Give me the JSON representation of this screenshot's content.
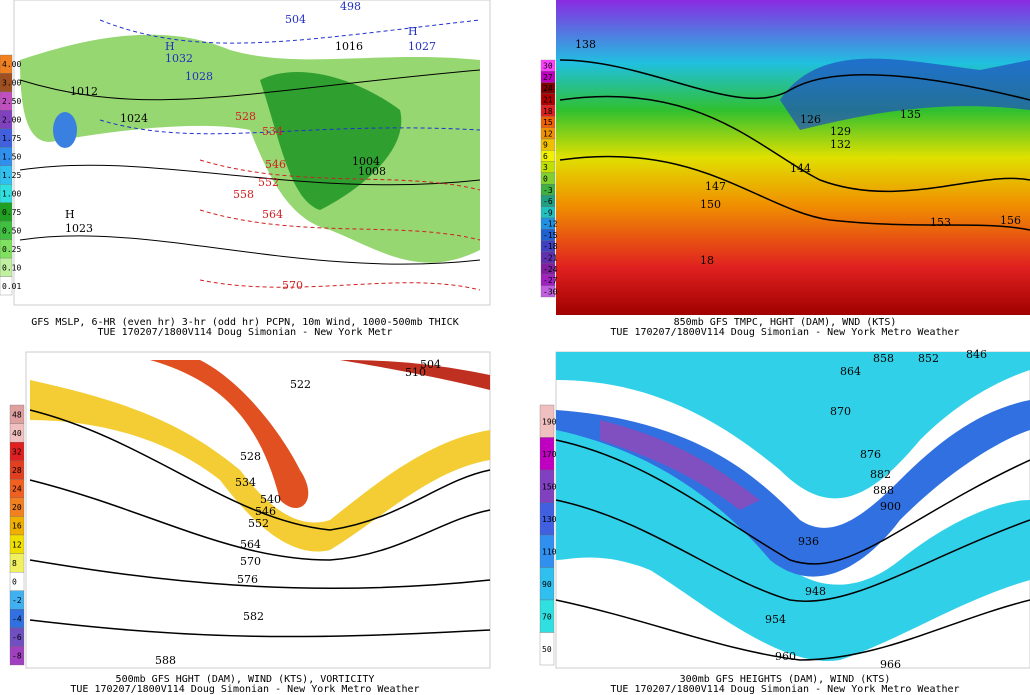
{
  "panels": [
    {
      "caption": [
        "GFS MSLP, 6-HR (even hr) 3-hr (odd hr) PCPN, 10m Wind, 1000-500mb THICK",
        "TUE 170207/1800V114 Doug Simonian - New York Metr"
      ],
      "colorbar": [
        "4.00",
        "3.00",
        "2.50",
        "2.00",
        "1.75",
        "1.50",
        "1.25",
        "1.00",
        "0.75",
        "0.50",
        "0.25",
        "0.10",
        "0.01"
      ],
      "labels": [
        "H",
        "1032",
        "504",
        "498",
        "H",
        "1027",
        "1028",
        "1016",
        "1012",
        "1024",
        "528",
        "534",
        "546",
        "552",
        "558",
        "564",
        "570",
        "1004",
        "1008",
        "H",
        "1023"
      ]
    },
    {
      "caption": [
        "850mb GFS TMPC, HGHT (DAM), WND (KTS)",
        "TUE 170207/1800V114 Doug Simonian - New York Metro Weather"
      ],
      "colorbar": [
        "30",
        "27",
        "24",
        "21",
        "18",
        "15",
        "12",
        "9",
        "6",
        "3",
        "0",
        "-3",
        "-6",
        "-9",
        "-12",
        "-15",
        "-18",
        "-21",
        "-24",
        "-27",
        "-30"
      ],
      "labels": [
        "138",
        "126",
        "129",
        "132",
        "135",
        "144",
        "147",
        "150",
        "153",
        "156",
        "18"
      ]
    },
    {
      "caption": [
        "500mb GFS HGHT (DAM), WIND (KTS), VORTICITY",
        "TUE 170207/1800V114 Doug Simonian - New York Metro Weather"
      ],
      "colorbar": [
        "48",
        "40",
        "32",
        "28",
        "24",
        "20",
        "16",
        "12",
        "8",
        "0",
        "-2",
        "-4",
        "-6",
        "-8"
      ],
      "labels": [
        "504",
        "510",
        "522",
        "528",
        "534",
        "540",
        "546",
        "552",
        "564",
        "570",
        "576",
        "582",
        "588"
      ]
    },
    {
      "caption": [
        "300mb GFS HEIGHTS (DAM), WIND (KTS)",
        "TUE 170207/1800V114 Doug Simonian - New York Metro Weather"
      ],
      "colorbar": [
        "190",
        "170",
        "150",
        "130",
        "110",
        "90",
        "70",
        "50"
      ],
      "labels": [
        "858",
        "852",
        "846",
        "864",
        "870",
        "876",
        "882",
        "888",
        "900",
        "936",
        "948",
        "954",
        "960",
        "966"
      ]
    }
  ]
}
